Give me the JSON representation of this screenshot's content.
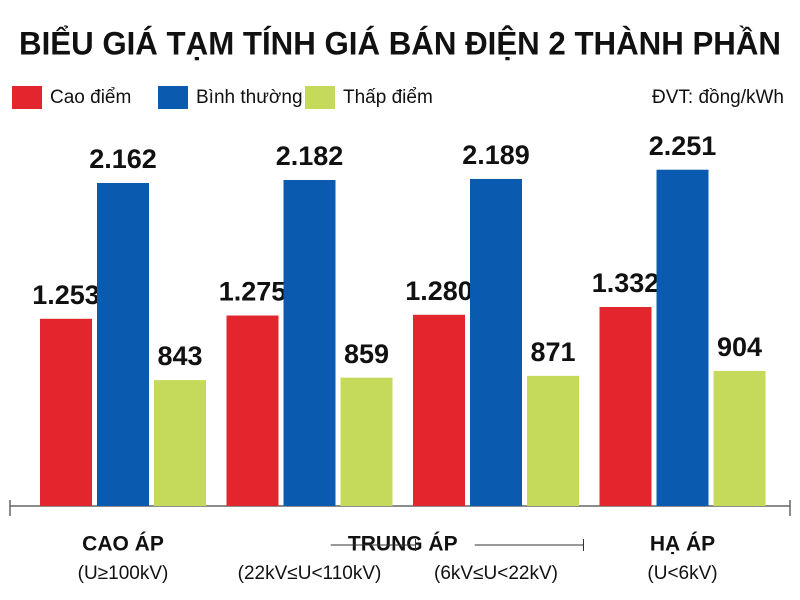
{
  "chart_data": {
    "type": "bar",
    "title": "BIỂU GIÁ TẠM TÍNH GIÁ BÁN ĐIỆN 2 THÀNH PHẦN",
    "unit_note": "ĐVT: đồng/kWh",
    "category_groups": [
      {
        "name": "CAO ÁP",
        "categories": [
          "(U≥100kV)"
        ]
      },
      {
        "name": "TRUNG ÁP",
        "categories": [
          "(22kV≤U<110kV)",
          "(6kV≤U<22kV)"
        ]
      },
      {
        "name": "HẠ ÁP",
        "categories": [
          "(U<6kV)"
        ]
      }
    ],
    "series": [
      {
        "name": "Cao điểm",
        "color": "#e3262d",
        "values": [
          1253,
          1275,
          1280,
          1332
        ],
        "value_labels": [
          "1.253",
          "1.275",
          "1.280",
          "1.332"
        ]
      },
      {
        "name": "Bình thường",
        "color": "#0a5bb0",
        "values": [
          2162,
          2182,
          2189,
          2251
        ],
        "value_labels": [
          "2.162",
          "2.182",
          "2.189",
          "2.251"
        ]
      },
      {
        "name": "Thấp điểm",
        "color": "#c5da5a",
        "values": [
          843,
          859,
          871,
          904
        ]
      }
    ]
  }
}
